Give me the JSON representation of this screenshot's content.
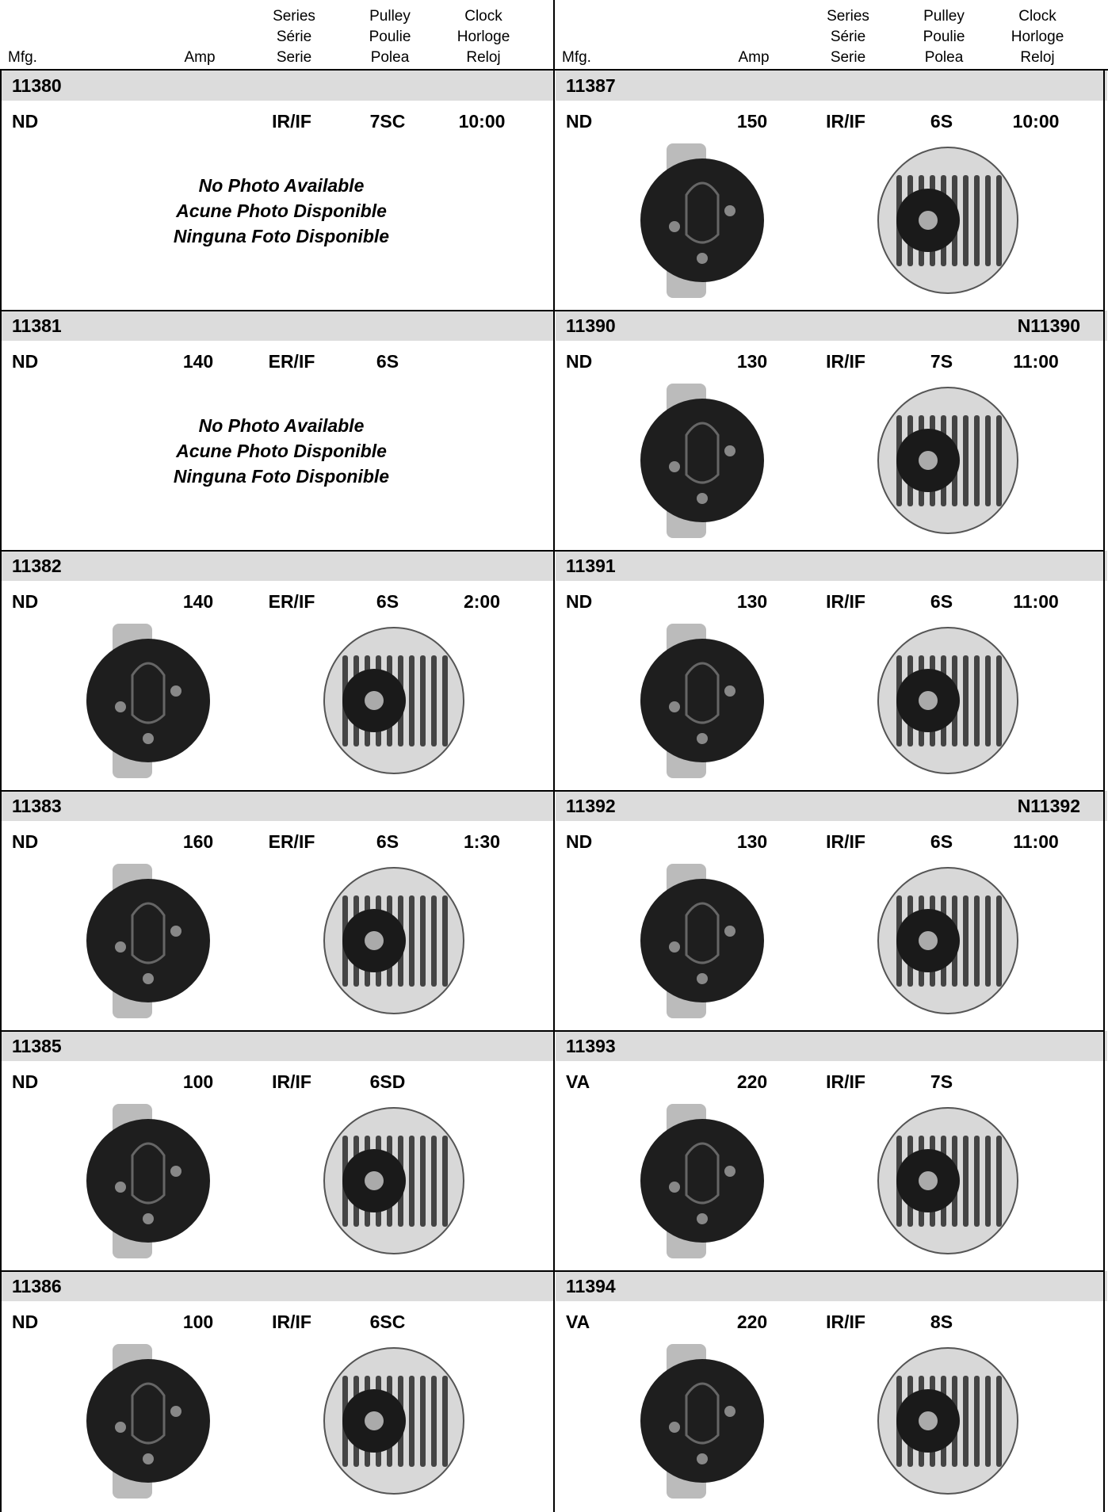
{
  "panels": [
    {
      "header": {
        "mfg": "Mfg.",
        "amp": "Amp",
        "series": [
          "Series",
          "Série",
          "Serie"
        ],
        "pulley": [
          "Pulley",
          "Poulie",
          "Polea"
        ],
        "clock": [
          "Clock",
          "Horloge",
          "Reloj"
        ]
      },
      "items": [
        {
          "part": "11380",
          "mfg": "ND",
          "series": "IR/IF",
          "pulley": "7SC",
          "clock": "10:00",
          "no_photo": [
            "No Photo Available",
            "Acune Photo Disponible",
            "Ninguna Foto Disponible"
          ]
        },
        {
          "part": "11381",
          "mfg": "ND",
          "amp": "140",
          "series": "ER/IF",
          "pulley": "6S",
          "no_photo": [
            "No Photo Available",
            "Acune Photo Disponible",
            "Ninguna Foto Disponible"
          ]
        },
        {
          "part": "11382",
          "mfg": "ND",
          "amp": "140",
          "series": "ER/IF",
          "pulley": "6S",
          "clock": "2:00"
        },
        {
          "part": "11383",
          "mfg": "ND",
          "amp": "160",
          "series": "ER/IF",
          "pulley": "6S",
          "clock": "1:30"
        },
        {
          "part": "11385",
          "mfg": "ND",
          "amp": "100",
          "series": "IR/IF",
          "pulley": "6SD"
        },
        {
          "part": "11386",
          "mfg": "ND",
          "amp": "100",
          "series": "IR/IF",
          "pulley": "6SC"
        }
      ]
    },
    {
      "header": {
        "mfg": "Mfg.",
        "amp": "Amp",
        "series": [
          "Series",
          "Série",
          "Serie"
        ],
        "pulley": [
          "Pulley",
          "Poulie",
          "Polea"
        ],
        "clock": [
          "Clock",
          "Horloge",
          "Reloj"
        ]
      },
      "items": [
        {
          "part": "11387",
          "mfg": "ND",
          "amp": "150",
          "series": "IR/IF",
          "pulley": "6S",
          "clock": "10:00"
        },
        {
          "part": "11390",
          "alt": "N11390",
          "mfg": "ND",
          "amp": "130",
          "series": "IR/IF",
          "pulley": "7S",
          "clock": "11:00"
        },
        {
          "part": "11391",
          "mfg": "ND",
          "amp": "130",
          "series": "IR/IF",
          "pulley": "6S",
          "clock": "11:00"
        },
        {
          "part": "11392",
          "alt": "N11392",
          "mfg": "ND",
          "amp": "130",
          "series": "IR/IF",
          "pulley": "6S",
          "clock": "11:00"
        },
        {
          "part": "11393",
          "mfg": "VA",
          "amp": "220",
          "series": "IR/IF",
          "pulley": "7S"
        },
        {
          "part": "11394",
          "mfg": "VA",
          "amp": "220",
          "series": "IR/IF",
          "pulley": "8S"
        }
      ]
    }
  ]
}
